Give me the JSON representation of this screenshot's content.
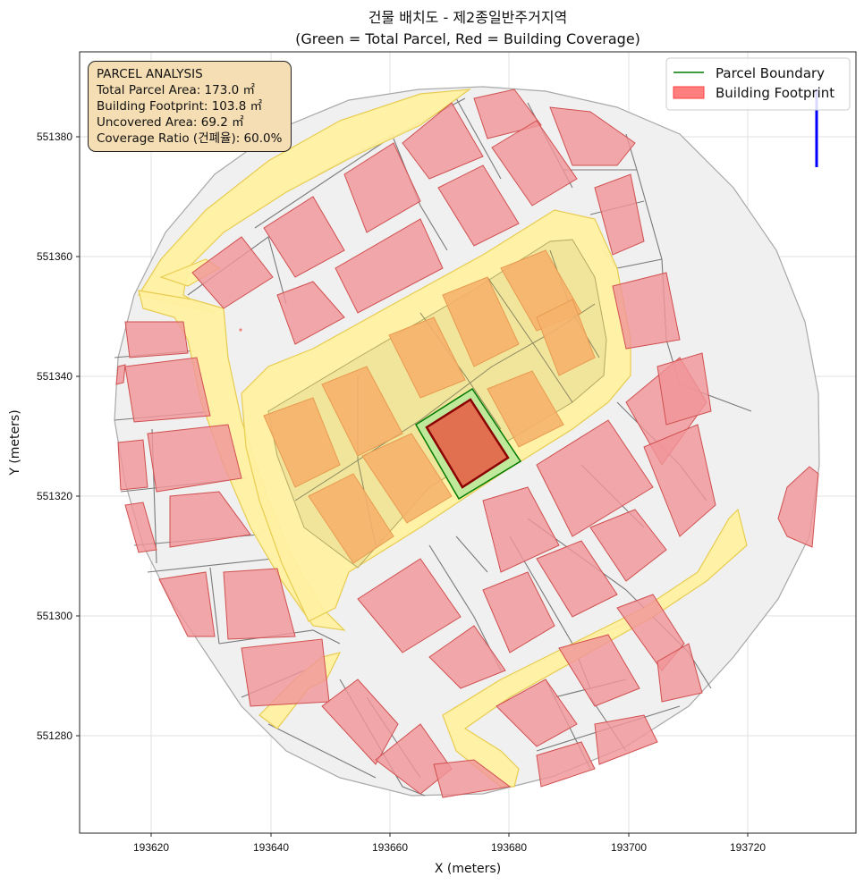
{
  "title_line1": "건물 배치도 - 제2종일반주거지역",
  "title_line2": "(Green = Total Parcel, Red = Building Coverage)",
  "info_box": {
    "heading": "PARCEL ANALYSIS",
    "lines": [
      "Total Parcel Area: 173.0 ㎡",
      "Building Footprint: 103.8 ㎡",
      "Uncovered Area: 69.2 ㎡",
      "Coverage Ratio (건폐율): 60.0%"
    ]
  },
  "legend": {
    "placement": "top-right",
    "parcel_boundary": "Parcel Boundary",
    "building_footprint": "Building Footprint"
  },
  "axes": {
    "xlabel": "X (meters)",
    "ylabel": "Y (meters)",
    "xlim": [
      193608,
      193738
    ],
    "ylim": [
      551263,
      551393
    ],
    "xticks": [
      "193620",
      "193640",
      "193660",
      "193680",
      "193700",
      "193720"
    ],
    "yticks": [
      "551280",
      "551300",
      "551320",
      "551340",
      "551360",
      "551380"
    ],
    "grid": true
  },
  "colors": {
    "context_fill": "#f0f0f0",
    "parcel_line": "#808080",
    "road_fill": "#fff0a0",
    "road_edge": "#e6c83c",
    "block_fill": "#f0e29a",
    "building_fill": "#f4a3a6",
    "building_edge": "#d95050",
    "orange_building": "#f6b26b",
    "target_parcel_fill": "#bde89a",
    "target_parcel_edge": "#007a00",
    "target_building_fill": "#e07050",
    "target_building_edge": "#8b0000",
    "north_arrow": "#0000ff"
  }
}
